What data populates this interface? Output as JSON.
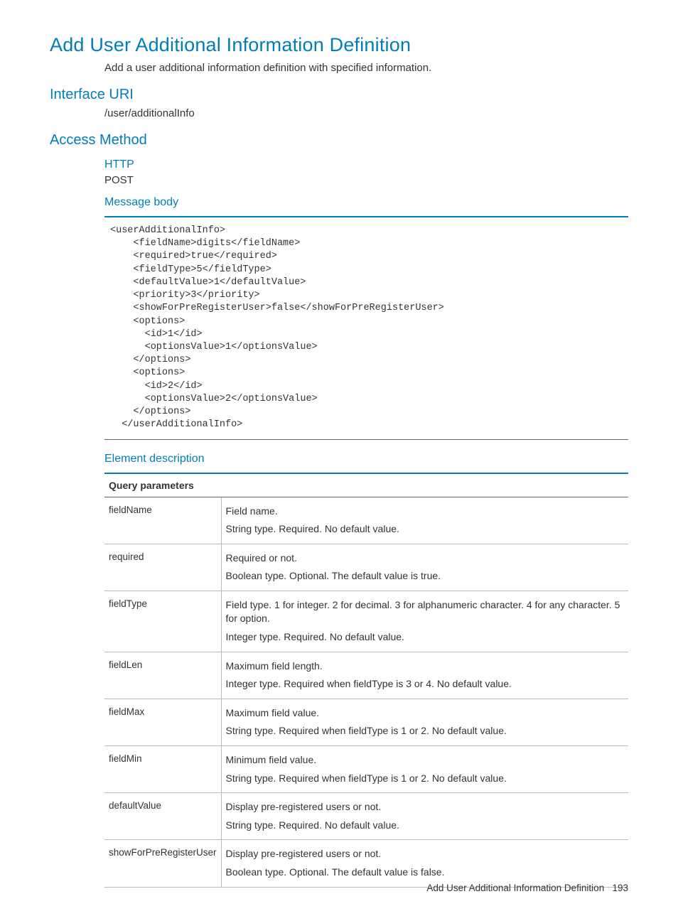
{
  "page_title": "Add User Additional Information Definition",
  "page_desc": "Add a user additional information definition with specified information.",
  "sections": {
    "interface_uri_heading": "Interface URI",
    "interface_uri_value": "/user/additionalInfo",
    "access_method_heading": "Access Method",
    "http_heading": "HTTP",
    "http_value": "POST",
    "message_body_heading": "Message body",
    "element_desc_heading": "Element description"
  },
  "code_block": "<userAdditionalInfo>\n    <fieldName>digits</fieldName>\n    <required>true</required>\n    <fieldType>5</fieldType>\n    <defaultValue>1</defaultValue>\n    <priority>3</priority>\n    <showForPreRegisterUser>false</showForPreRegisterUser>\n    <options>\n      <id>1</id>\n      <optionsValue>1</optionsValue>\n    </options>\n    <options>\n      <id>2</id>\n      <optionsValue>2</optionsValue>\n    </options>\n  </userAdditionalInfo>",
  "table": {
    "header": "Query parameters",
    "rows": [
      {
        "name": "fieldName",
        "l1": "Field name.",
        "l2": "String type. Required. No default value."
      },
      {
        "name": "required",
        "l1": "Required or not.",
        "l2": "Boolean type. Optional. The default value is true."
      },
      {
        "name": "fieldType",
        "l1": "Field type. 1 for integer. 2 for decimal. 3 for alphanumeric character. 4 for any character. 5 for option.",
        "l2": "Integer type. Required. No default value."
      },
      {
        "name": "fieldLen",
        "l1": "Maximum field length.",
        "l2": "Integer type. Required when fieldType is 3 or 4. No default value."
      },
      {
        "name": "fieldMax",
        "l1": "Maximum field value.",
        "l2": "String type. Required when fieldType is 1 or 2. No default value."
      },
      {
        "name": "fieldMin",
        "l1": "Minimum field value.",
        "l2": "String type. Required when fieldType is 1 or 2. No default value."
      },
      {
        "name": "defaultValue",
        "l1": "Display pre-registered users or not.",
        "l2": "String type. Required. No default value."
      },
      {
        "name": "showForPreRegisterUser",
        "l1": "Display pre-registered users or not.",
        "l2": "Boolean type. Optional. The default value is false."
      }
    ]
  },
  "footer_title": "Add User Additional Information Definition",
  "footer_page": "193",
  "colors": {
    "accent": "#007dba",
    "text": "#333333",
    "border_light": "#bbbbbb",
    "border_mid": "#666666"
  }
}
